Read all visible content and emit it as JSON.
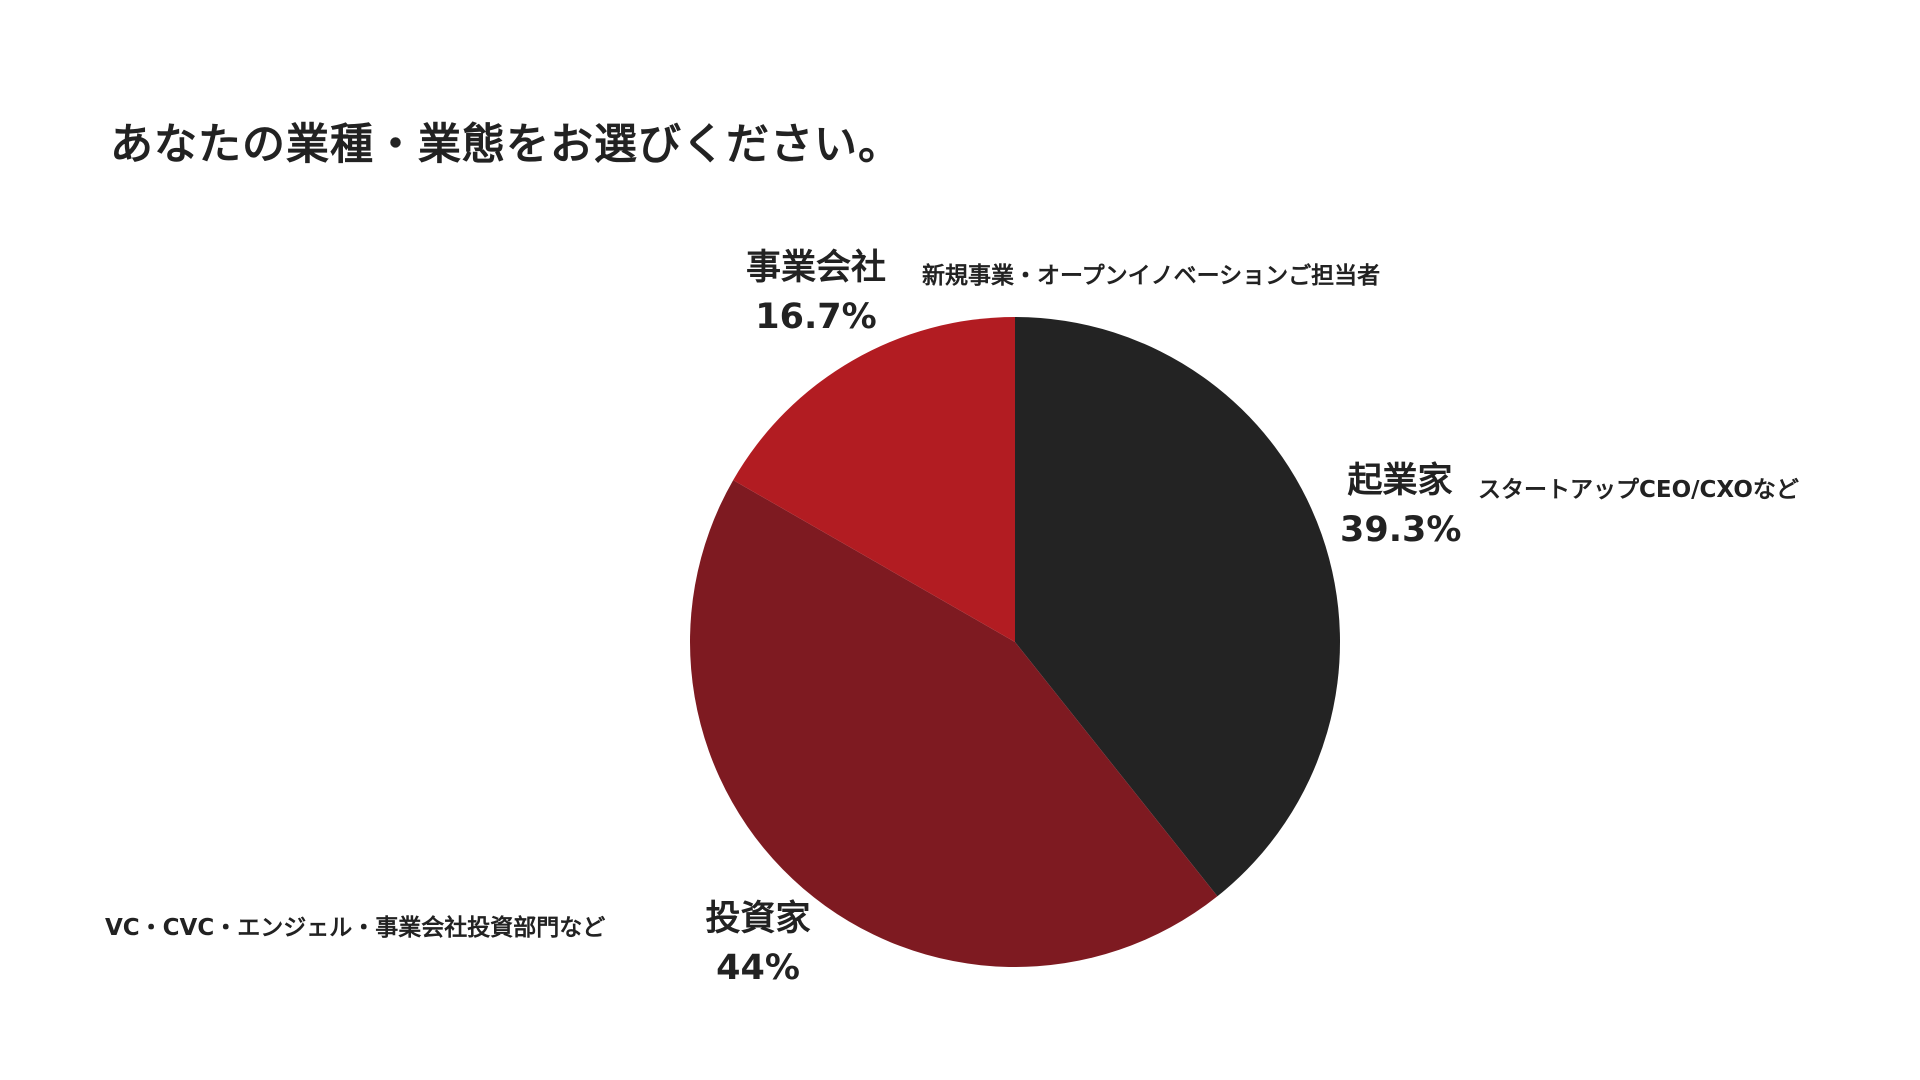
{
  "title": "あなたの業種・業態をお選びください。",
  "chart_data": {
    "type": "pie",
    "title": "あなたの業種・業態をお選びください。",
    "unit": "%",
    "start": "12 o'clock",
    "direction": "clockwise",
    "slices": [
      {
        "label": "起業家",
        "value": 39.3,
        "value_label": "39.3%",
        "note": "スタートアップCEO/CXOなど",
        "color": "#232323"
      },
      {
        "label": "投資家",
        "value": 44,
        "value_label": "44%",
        "note": "VC・CVC・エンジェル・事業会社投資部門など",
        "color": "#7e1a21"
      },
      {
        "label": "事業会社",
        "value": 16.7,
        "value_label": "16.7%",
        "note": "新規事業・オープンイノベーションご担当者",
        "color": "#b21c22"
      }
    ]
  }
}
